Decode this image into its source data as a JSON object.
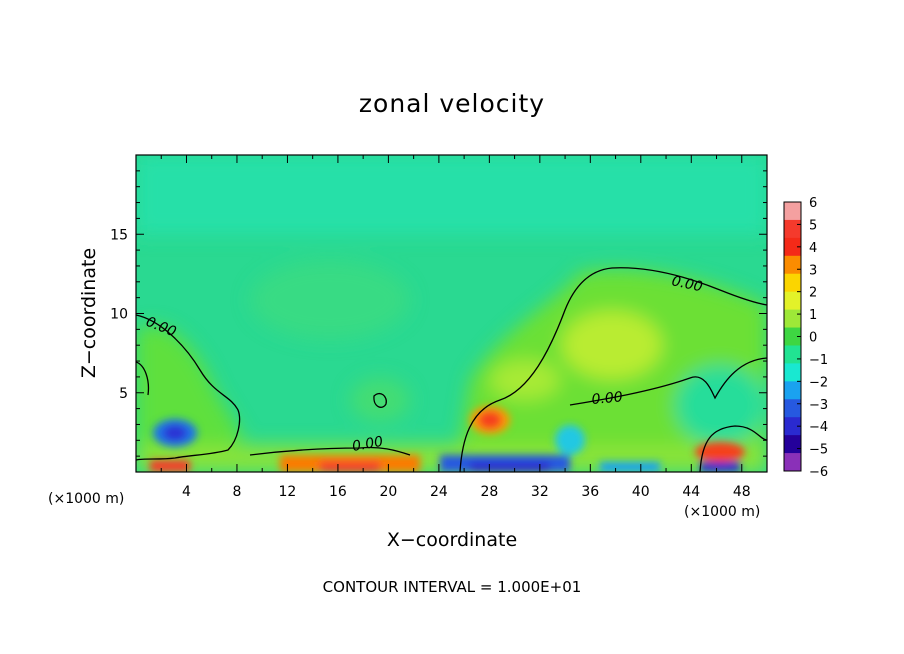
{
  "chart_data": {
    "type": "heatmap",
    "title": "zonal velocity",
    "xlabel": "X−coordinate",
    "ylabel": "Z−coordinate",
    "x_unit": "(×1000 m)",
    "z_unit": "(×1000 m)",
    "xlim": [
      0,
      50
    ],
    "ylim": [
      0,
      20
    ],
    "x_ticks": [
      4,
      8,
      12,
      16,
      20,
      24,
      28,
      32,
      36,
      40,
      44,
      48
    ],
    "y_ticks": [
      5,
      10,
      15
    ],
    "footer": "CONTOUR INTERVAL = 1.000E+01",
    "contour_label": "0.00",
    "colorbar": {
      "levels": [
        6,
        5,
        4,
        3,
        2,
        1,
        0,
        -1,
        -2,
        -3,
        -4,
        -5,
        -6
      ],
      "tick_labels": [
        "6",
        "5",
        "4",
        "3",
        "2",
        "1",
        "0",
        "−1",
        "−2",
        "−3",
        "−4",
        "−5",
        "−6"
      ],
      "colors": [
        "#f4a0a0",
        "#f53a2c",
        "#f42a18",
        "#fb8c00",
        "#fbd500",
        "#e3f229",
        "#9ee838",
        "#3ed642",
        "#21e392",
        "#19e8d1",
        "#1aa2f0",
        "#2659e0",
        "#2a2ad0",
        "#24009a",
        "#8a30b8"
      ]
    }
  }
}
